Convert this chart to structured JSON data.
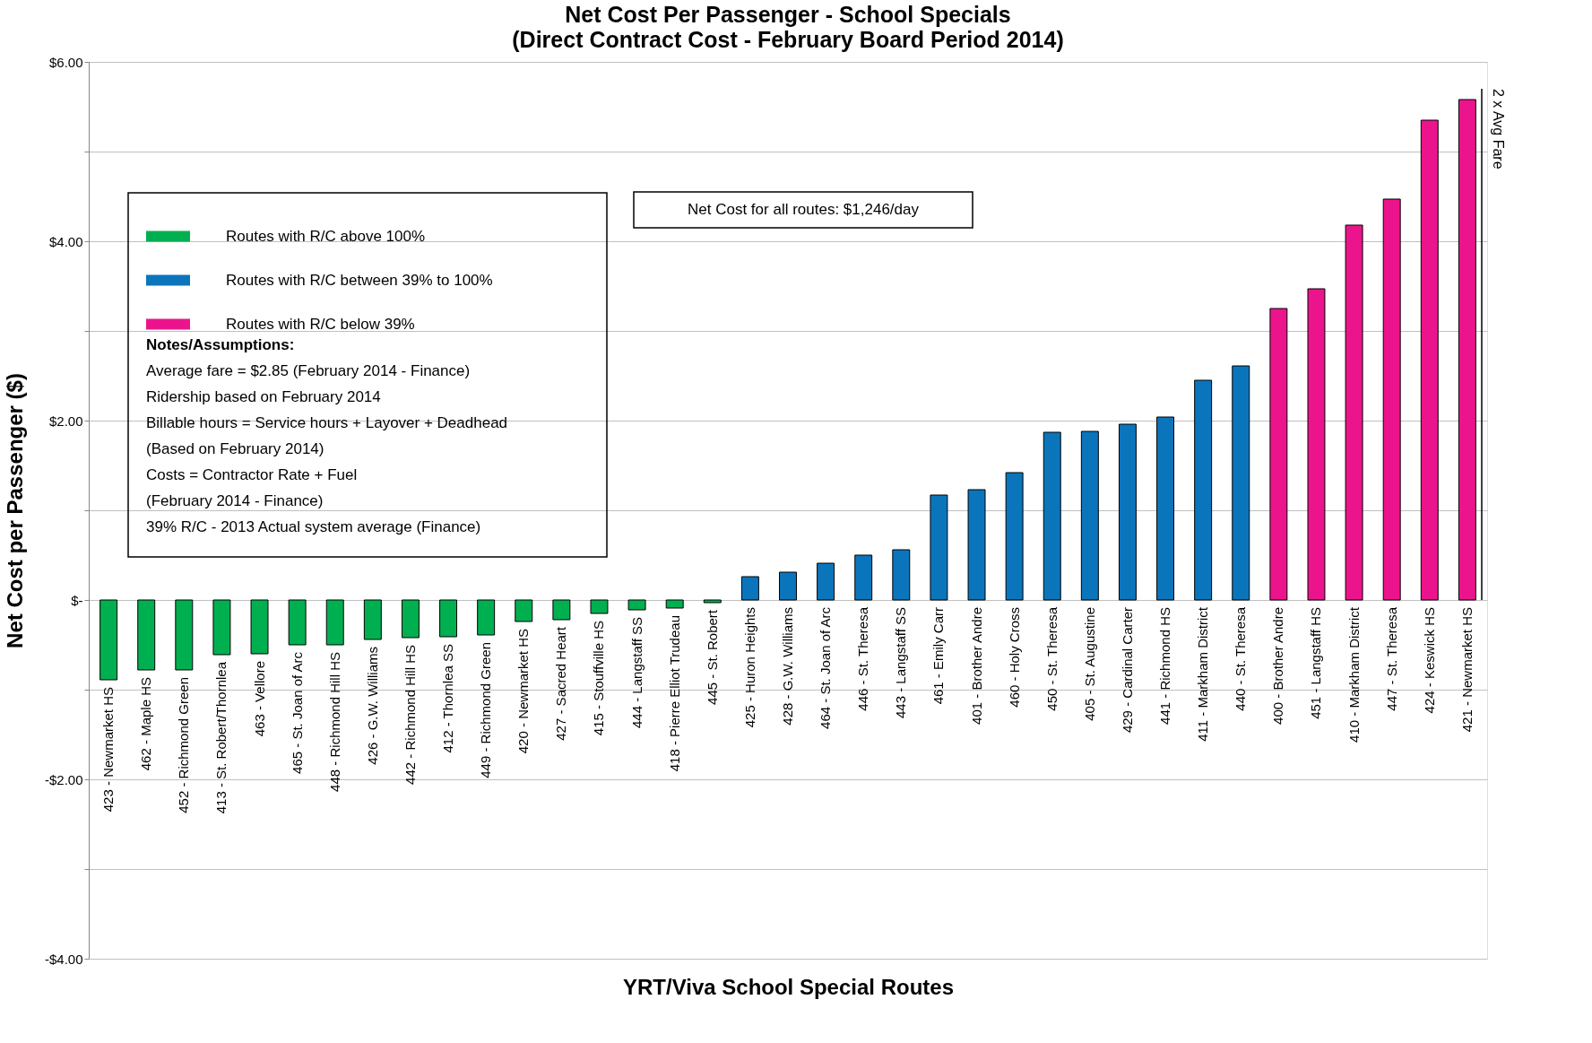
{
  "chart_data": {
    "type": "bar",
    "title": "Net Cost Per Passenger - School Specials",
    "subtitle": "(Direct Contract Cost - February Board Period 2014)",
    "xlabel": "YRT/Viva School Special Routes",
    "ylabel": "Net Cost per Passenger ($)",
    "categories": [
      "423 - Newmarket HS",
      "462 - Maple HS",
      "452 - Richmond Green",
      "413 - St. Robert/Thornlea",
      "463 - Vellore",
      "465 - St. Joan of Arc",
      "448 - Richmond Hill HS",
      "426 - G.W. Williams",
      "442 - Richmond Hill HS",
      "412 - Thornlea SS",
      "449 - Richmond Green",
      "420 - Newmarket HS",
      "427 - Sacred Heart",
      "415 - Stouffville HS",
      "444 - Langstaff SS",
      "418 - Pierre Elliot Trudeau",
      "445 - St. Robert",
      "425 - Huron Heights",
      "428 - G.W. Williams",
      "464 - St. Joan of Arc",
      "446 - St. Theresa",
      "443 - Langstaff SS",
      "461 - Emily Carr",
      "401 - Brother Andre",
      "460 - Holy Cross",
      "450 - St. Theresa",
      "405 - St. Augustine",
      "429 - Cardinal Carter",
      "441 - Richmond HS",
      "411 - Markham District",
      "440 - St. Theresa",
      "400 - Brother Andre",
      "451 - Langstaff HS",
      "410 - Markham District",
      "447 - St. Theresa",
      "424 - Keswick HS",
      "421 - Newmarket HS"
    ],
    "series": [
      {
        "name": "Routes with R/C above 100%",
        "color": "#00b050",
        "values": [
          -0.89,
          -0.78,
          -0.78,
          -0.61,
          -0.6,
          -0.5,
          -0.5,
          -0.44,
          -0.42,
          -0.41,
          -0.39,
          -0.24,
          -0.22,
          -0.15,
          -0.11,
          -0.09,
          -0.03,
          null,
          null,
          null,
          null,
          null,
          null,
          null,
          null,
          null,
          null,
          null,
          null,
          null,
          null,
          null,
          null,
          null,
          null,
          null,
          null
        ]
      },
      {
        "name": "Routes with R/C between 39% to 100%",
        "color": "#0b75bc",
        "values": [
          null,
          null,
          null,
          null,
          null,
          null,
          null,
          null,
          null,
          null,
          null,
          null,
          null,
          null,
          null,
          null,
          null,
          0.26,
          0.31,
          0.41,
          0.5,
          0.56,
          1.17,
          1.23,
          1.42,
          1.87,
          1.88,
          1.96,
          2.04,
          2.45,
          2.61,
          null,
          null,
          null,
          null,
          null,
          null
        ]
      },
      {
        "name": "Routes with R/C below 39%",
        "color": "#ec148c",
        "values": [
          null,
          null,
          null,
          null,
          null,
          null,
          null,
          null,
          null,
          null,
          null,
          null,
          null,
          null,
          null,
          null,
          null,
          null,
          null,
          null,
          null,
          null,
          null,
          null,
          null,
          null,
          null,
          null,
          null,
          null,
          null,
          3.25,
          3.47,
          4.18,
          4.47,
          5.35,
          5.58
        ]
      }
    ],
    "ylim": [
      -4,
      6
    ],
    "yticks": [
      {
        "value": -4,
        "label": "-$4.00"
      },
      {
        "value": -3,
        "label": null
      },
      {
        "value": -2,
        "label": "-$2.00"
      },
      {
        "value": -1,
        "label": null
      },
      {
        "value": 0,
        "label": "$-"
      },
      {
        "value": 1,
        "label": null
      },
      {
        "value": 2,
        "label": "$2.00"
      },
      {
        "value": 3,
        "label": null
      },
      {
        "value": 4,
        "label": "$4.00"
      },
      {
        "value": 5,
        "label": null
      },
      {
        "value": 6,
        "label": "$6.00"
      }
    ],
    "grid": "y",
    "legend": "top left",
    "annotations": [
      "Net Cost for all routes: $1,246/day",
      "Notes/Assumptions:",
      "Average fare = $2.85 (February 2014 - Finance)",
      "Ridership based on February 2014",
      "Billable hours = Service hours + Layover + Deadhead",
      "(Based on February 2014)",
      "Costs = Contractor Rate + Fuel",
      "(February 2014 - Finance)",
      "39% R/C - 2013 Actual system average (Finance)",
      "2 x Avg Fare"
    ]
  }
}
